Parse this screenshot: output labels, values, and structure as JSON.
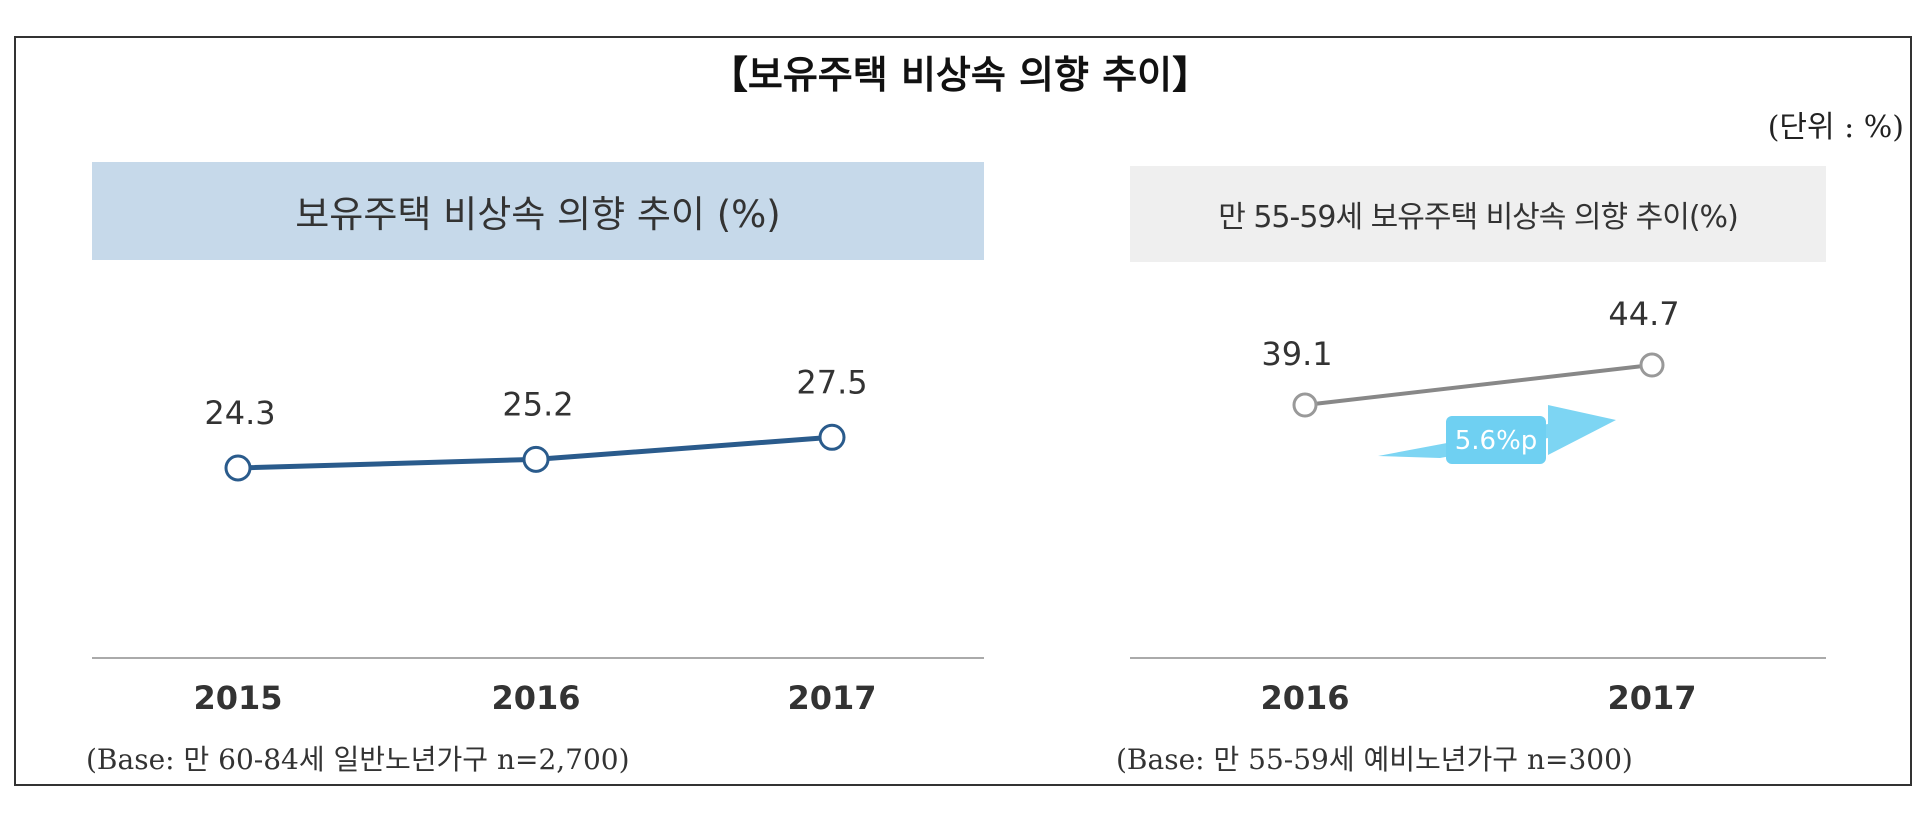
{
  "title": "【보유주택 비상속 의향 추이】",
  "unit_label": "(단위 : %)",
  "colors": {
    "left_line": "#2a5b8c",
    "right_line": "#888888",
    "arrow": "#6fd0f2",
    "left_header_bg": "#c6d9ea",
    "right_header_bg": "#efefef"
  },
  "chart_data": [
    {
      "type": "line",
      "title": "보유주택 비상속 의향 추이 (%)",
      "categories": [
        "2015",
        "2016",
        "2017"
      ],
      "series": [
        {
          "values": [
            24.3,
            25.2,
            27.5
          ]
        }
      ],
      "labels": [
        "24.3",
        "25.2",
        "27.5"
      ],
      "xlabel": "",
      "ylabel": "",
      "footnote": "(Base: 만 60-84세 일반노년가구 n=2,700)",
      "grid": false
    },
    {
      "type": "line",
      "title": "만 55-59세 보유주택 비상속 의향 추이(%)",
      "categories": [
        "2016",
        "2017"
      ],
      "series": [
        {
          "values": [
            39.1,
            44.7
          ]
        }
      ],
      "labels": [
        "39.1",
        "44.7"
      ],
      "annotation": "5.6%p",
      "xlabel": "",
      "ylabel": "",
      "footnote": "(Base: 만 55-59세 예비노년가구 n=300)",
      "grid": false
    }
  ]
}
